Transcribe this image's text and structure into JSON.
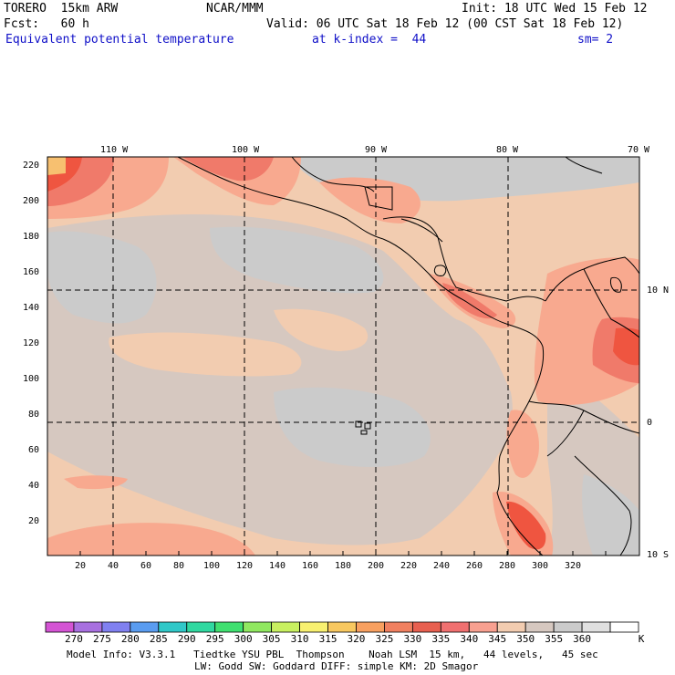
{
  "header": {
    "model": "TORERO  15km ARW",
    "org": "NCAR/MMM",
    "init": "Init: 18 UTC Wed 15 Feb 12",
    "fcst": "Fcst:   60 h",
    "valid": "Valid: 06 UTC Sat 18 Feb 12 (00 CST Sat 18 Feb 12)",
    "field": "Equivalent potential temperature",
    "level": "at k-index =  44",
    "smooth": "sm= 2"
  },
  "map": {
    "lon_labels": [
      "110 W",
      "100 W",
      "90 W",
      "80 W",
      "70 W"
    ],
    "lat_labels": [
      "10 N",
      "0",
      "10 S"
    ],
    "x_ticks": [
      "20",
      "40",
      "60",
      "80",
      "100",
      "120",
      "140",
      "160",
      "180",
      "200",
      "220",
      "240",
      "260",
      "280",
      "300",
      "320"
    ],
    "y_ticks": [
      "220",
      "200",
      "180",
      "160",
      "140",
      "120",
      "100",
      "80",
      "60",
      "40",
      "20"
    ],
    "colors": {
      "c340": "#f2ccb0",
      "c345": "#d6c8c0",
      "c350": "#cbcbcb",
      "c335": "#f8a98f",
      "c330": "#f07a6a",
      "c325": "#ef5540",
      "c320": "#f7a070"
    }
  },
  "colorbar": {
    "unit": "K",
    "colors": [
      "#d454d4",
      "#a870e0",
      "#8080f0",
      "#5a9cf0",
      "#30c8c8",
      "#30d8a0",
      "#40e070",
      "#90e860",
      "#c8f060",
      "#f8f070",
      "#f8c860",
      "#f8a060",
      "#f08060",
      "#e86050",
      "#f07070",
      "#f8a090",
      "#f2ccb0",
      "#d6c8c0",
      "#cbcbcb",
      "#e0e0e0",
      "#ffffff"
    ],
    "labels": [
      "270",
      "275",
      "280",
      "285",
      "290",
      "295",
      "300",
      "305",
      "310",
      "315",
      "320",
      "325",
      "330",
      "335",
      "340",
      "345",
      "350",
      "355",
      "360"
    ]
  },
  "footer": {
    "line1": "Model Info: V3.3.1   Tiedtke YSU PBL  Thompson    Noah LSM  15 km,   44 levels,   45 sec",
    "line2": "LW: Godd SW: Goddard DIFF: simple KM: 2D Smagor"
  }
}
